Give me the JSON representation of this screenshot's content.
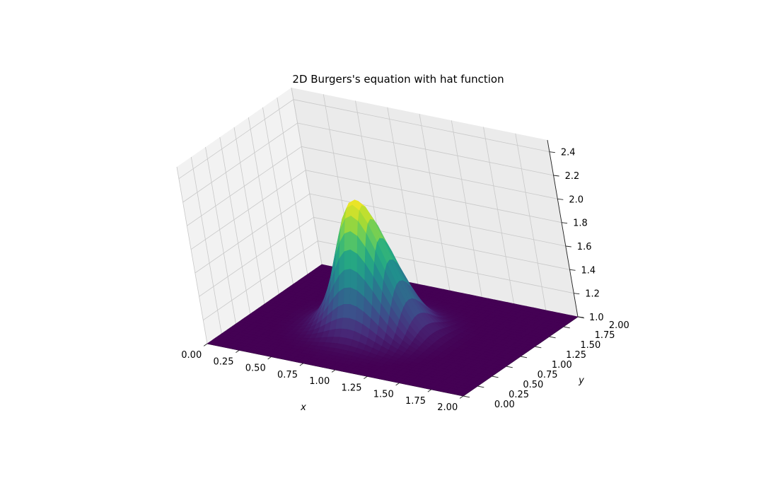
{
  "chart_data": {
    "type": "surface3d",
    "title": "2D Burgers's equation with hat function",
    "xlabel": "x",
    "ylabel": "y",
    "zlabel": "",
    "xlim": [
      0,
      2
    ],
    "ylim": [
      0,
      2
    ],
    "zlim": [
      1.0,
      2.5
    ],
    "xticks": [
      "0.00",
      "0.25",
      "0.50",
      "0.75",
      "1.00",
      "1.25",
      "1.50",
      "1.75",
      "2.00"
    ],
    "yticks": [
      "0.00",
      "0.25",
      "0.50",
      "0.75",
      "1.00",
      "1.25",
      "1.50",
      "1.75",
      "2.00"
    ],
    "zticks": [
      "1.0",
      "1.2",
      "1.4",
      "1.6",
      "1.8",
      "2.0",
      "2.2",
      "2.4"
    ],
    "colormap": "viridis",
    "grid": true,
    "surface": {
      "baseline": 1.0,
      "peak_value": 2.1,
      "peak_center": [
        0.9,
        0.95
      ],
      "spread": [
        0.27,
        0.32
      ]
    }
  }
}
